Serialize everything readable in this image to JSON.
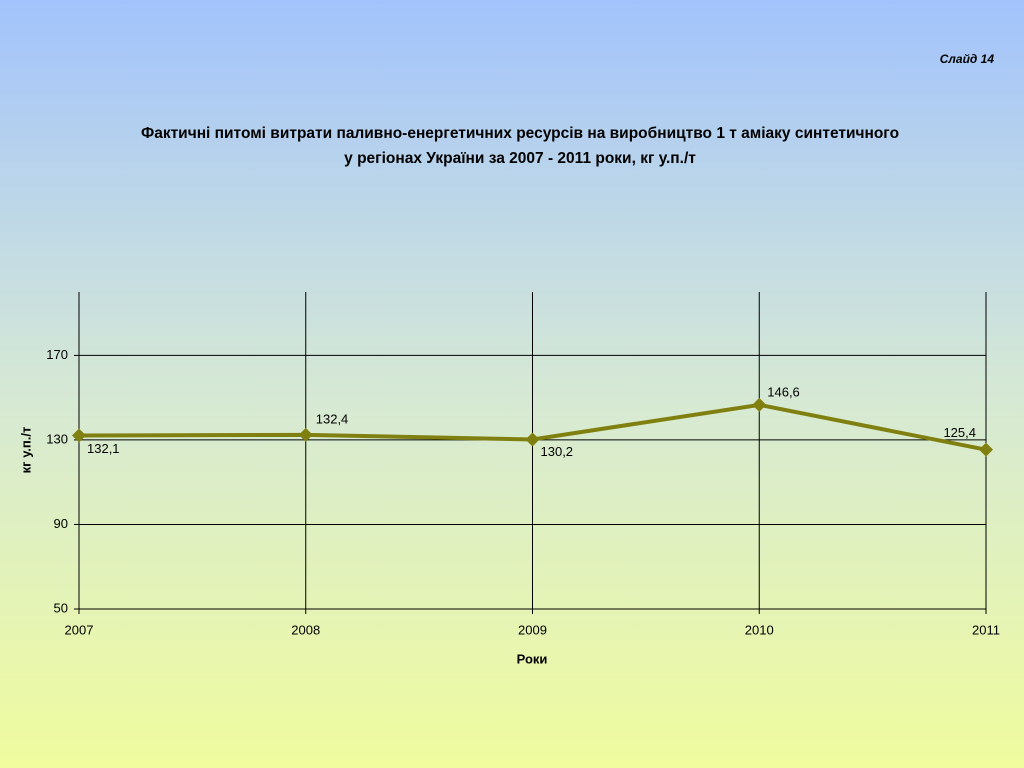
{
  "slide_label": "Слайд 14",
  "chart_data": {
    "type": "line",
    "title": [
      "Фактичні питомі витрати паливно-енергетичних ресурсів на виробництво 1 т аміаку синтетичного",
      "у регіонах України за 2007 - 2011 роки, кг у.п./т"
    ],
    "x_label": "Роки",
    "y_label": "кг у.п./т",
    "x": [
      2007,
      2008,
      2009,
      2010,
      2011
    ],
    "values": [
      132.1,
      132.4,
      130.2,
      146.6,
      125.4
    ],
    "value_labels": [
      "132,1",
      "132,4",
      "130,2",
      "146,6",
      "125,4"
    ],
    "color": "#808010",
    "xlim": [
      2007,
      2011
    ],
    "xticks": [
      2007,
      2008,
      2009,
      2010,
      2011
    ],
    "ylim": [
      50,
      200
    ],
    "yticks": [
      50,
      90,
      130,
      170
    ],
    "grid": true
  }
}
